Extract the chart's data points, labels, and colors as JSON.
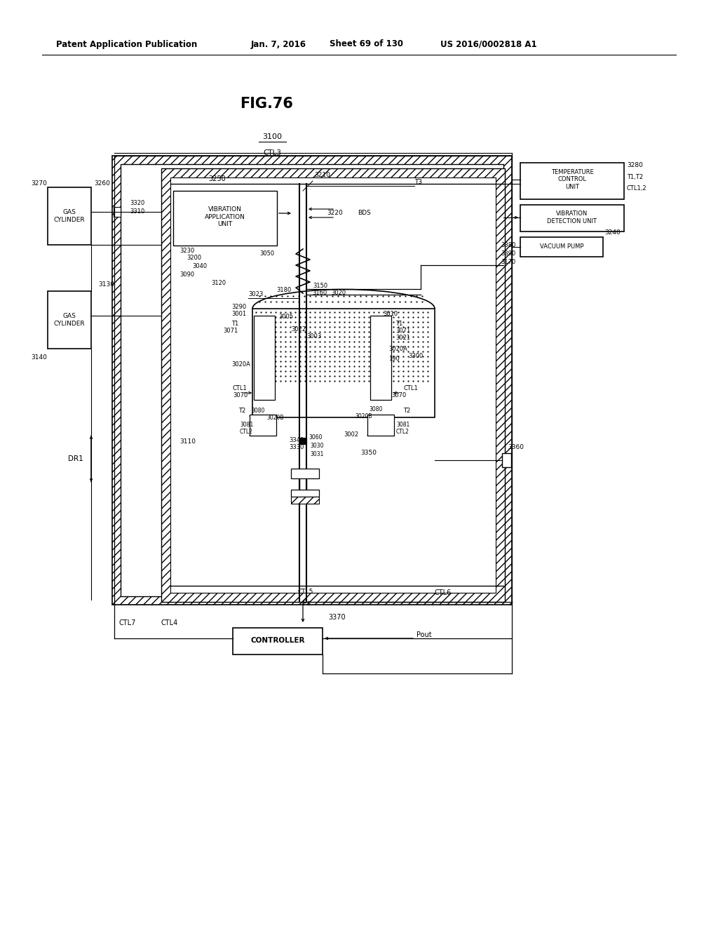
{
  "bg_color": "#ffffff",
  "fig_title": "FIG.76",
  "header_left": "Patent Application Publication",
  "header_date": "Jan. 7, 2016",
  "header_sheet": "Sheet 69 of 130",
  "header_right": "US 2016/0002818 A1"
}
